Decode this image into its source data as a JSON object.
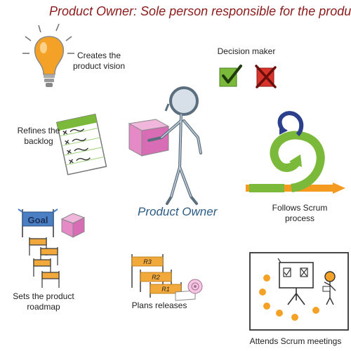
{
  "title": "Product Owner: Sole person responsible for the product",
  "center_label": "Product Owner",
  "labels": {
    "vision": "Creates the\nproduct vision",
    "decision": "Decision maker",
    "backlog": "Refines the\nbacklog",
    "scrum_process": "Follows Scrum\nprocess",
    "roadmap": "Sets the product\nroadmap",
    "releases": "Plans releases",
    "meetings": "Attends Scrum meetings"
  },
  "goal_flag": "Goal",
  "release_flags": [
    "R3",
    "R2",
    "R1"
  ],
  "icons": {
    "vision": "lightbulb-icon",
    "decision_yes": "checkmark-icon",
    "decision_no": "x-mark-icon",
    "backlog": "checklist-icon",
    "scrum_process": "scrum-cycle-icon",
    "roadmap": "goal-flag-icon",
    "releases": "release-flags-icon",
    "meetings": "meeting-board-icon"
  },
  "colors": {
    "title": "#8b1a1a",
    "center_label": "#2b5a84",
    "box_pink": "#e589c7",
    "check_green": "#7bb93a",
    "cross_red": "#d9342b",
    "bulb_orange": "#f4a227",
    "flag_orange": "#f2a93b",
    "goal_blue": "#4a7fc4"
  }
}
